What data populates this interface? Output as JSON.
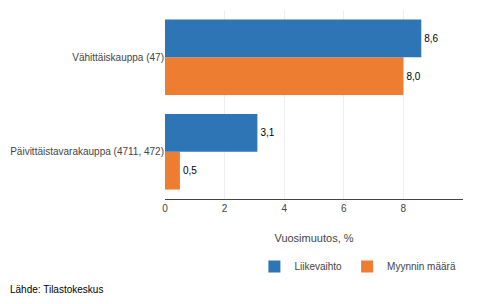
{
  "chart_data": {
    "type": "bar",
    "orientation": "horizontal",
    "categories": [
      "Päivittäistavarakauppa (4711, 472)",
      "Vähittäiskauppa (47)"
    ],
    "series": [
      {
        "name": "Liikevaihto",
        "color": "#2E75B6",
        "values": [
          3.1,
          8.6
        ],
        "value_labels": [
          "3,1",
          "8,6"
        ]
      },
      {
        "name": "Myynnin määrä",
        "color": "#ED7D31",
        "values": [
          0.5,
          8.0
        ],
        "value_labels": [
          "0,5",
          "8,0"
        ]
      }
    ],
    "xlabel": "Vuosimuutos, %",
    "xlim": [
      0,
      10
    ],
    "xticks": [
      0,
      2,
      4,
      6,
      8
    ],
    "grid": true,
    "data_labels": true,
    "legend": "bottom",
    "annotations": [
      "Lähde: Tilastokeskus"
    ]
  }
}
